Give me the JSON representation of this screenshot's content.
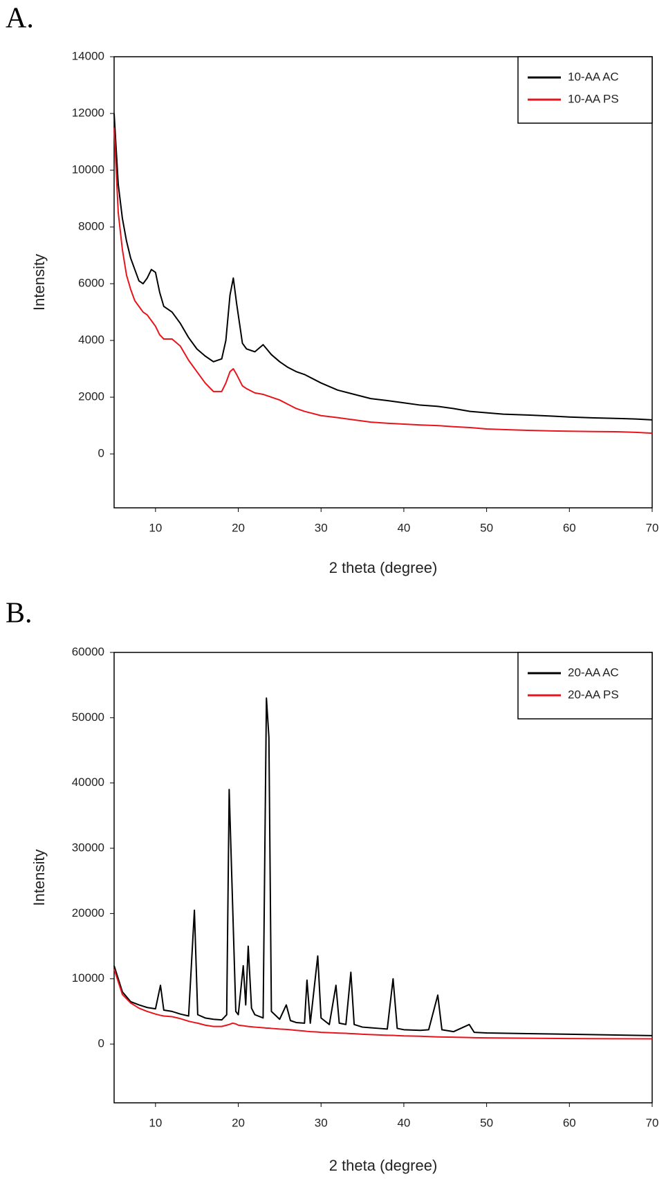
{
  "chart_data": [
    {
      "type": "line",
      "panel": "A.",
      "xlabel": "2 theta (degree)",
      "ylabel": "Intensity",
      "xlim": [
        5,
        70
      ],
      "xticks": [
        10,
        20,
        30,
        40,
        50,
        60,
        70
      ],
      "ylim": [
        -1900,
        14000
      ],
      "yticks": [
        0,
        2000,
        4000,
        6000,
        8000,
        10000,
        12000,
        14000
      ],
      "legend": "upper right",
      "x": [
        5,
        5.5,
        6,
        6.5,
        7,
        7.5,
        8,
        8.5,
        9,
        9.5,
        10,
        10.5,
        11,
        12,
        13,
        14,
        15,
        16,
        17,
        18,
        18.5,
        19,
        19.4,
        19.8,
        20.5,
        21,
        22,
        23,
        24,
        25,
        26,
        27,
        28,
        30,
        32,
        34,
        36,
        38,
        40,
        42,
        44,
        46,
        48,
        50,
        52,
        55,
        58,
        60,
        63,
        66,
        68,
        70
      ],
      "series": [
        {
          "name": "10-AA AC",
          "color": "#000000",
          "values": [
            12000,
            9500,
            8300,
            7500,
            6900,
            6500,
            6100,
            6000,
            6200,
            6500,
            6400,
            5700,
            5200,
            5000,
            4600,
            4100,
            3700,
            3450,
            3250,
            3350,
            4000,
            5600,
            6200,
            5300,
            3900,
            3700,
            3600,
            3850,
            3500,
            3250,
            3050,
            2900,
            2800,
            2500,
            2250,
            2100,
            1950,
            1880,
            1800,
            1720,
            1680,
            1600,
            1500,
            1450,
            1400,
            1370,
            1330,
            1300,
            1270,
            1250,
            1230,
            1200
          ]
        },
        {
          "name": "10-AA PS",
          "color": "#e8141b",
          "values": [
            11500,
            8500,
            7200,
            6300,
            5800,
            5400,
            5200,
            5000,
            4900,
            4700,
            4500,
            4200,
            4050,
            4050,
            3800,
            3300,
            2900,
            2500,
            2200,
            2200,
            2500,
            2900,
            3000,
            2800,
            2400,
            2300,
            2150,
            2100,
            2000,
            1900,
            1750,
            1600,
            1500,
            1350,
            1280,
            1200,
            1120,
            1080,
            1050,
            1020,
            1000,
            960,
            930,
            880,
            860,
            830,
            810,
            800,
            790,
            780,
            760,
            730
          ]
        }
      ]
    },
    {
      "type": "line",
      "panel": "B.",
      "xlabel": "2 theta (degree)",
      "ylabel": "Intensity",
      "xlim": [
        5,
        70
      ],
      "xticks": [
        10,
        20,
        30,
        40,
        50,
        60,
        70
      ],
      "ylim": [
        -9000,
        60000
      ],
      "yticks": [
        0,
        10000,
        20000,
        30000,
        40000,
        50000,
        60000
      ],
      "legend": "upper right",
      "x": [
        5,
        6,
        7,
        8,
        9,
        10,
        10.6,
        11,
        12,
        13,
        14,
        14.7,
        15.1,
        16,
        17,
        18,
        18.6,
        18.9,
        19.3,
        19.7,
        20,
        20.6,
        20.9,
        21.2,
        21.6,
        22,
        23,
        23.4,
        23.7,
        24,
        25,
        25.8,
        26.3,
        27,
        28,
        28.3,
        28.7,
        29.6,
        30,
        31,
        31.8,
        32.2,
        33,
        33.6,
        34,
        35,
        36,
        37,
        38,
        38.7,
        39.2,
        40,
        42,
        43,
        44.1,
        44.6,
        46,
        47.9,
        48.5,
        50,
        55,
        60,
        65,
        70
      ],
      "series": [
        {
          "name": "20-AA AC",
          "color": "#000000",
          "values": [
            12000,
            8000,
            6500,
            6000,
            5600,
            5400,
            9000,
            5200,
            5000,
            4600,
            4300,
            20500,
            4500,
            4000,
            3800,
            3700,
            4500,
            39000,
            22000,
            5000,
            4500,
            12000,
            6000,
            15000,
            5500,
            4500,
            4000,
            53000,
            47000,
            5000,
            3800,
            6000,
            3600,
            3300,
            3200,
            9800,
            3200,
            13500,
            4000,
            3000,
            9000,
            3200,
            3000,
            11000,
            3000,
            2600,
            2500,
            2400,
            2300,
            10000,
            2400,
            2200,
            2100,
            2200,
            7500,
            2200,
            1900,
            3000,
            1800,
            1700,
            1600,
            1500,
            1400,
            1300
          ]
        },
        {
          "name": "20-AA PS",
          "color": "#e8141b",
          "values": [
            11500,
            7600,
            6300,
            5500,
            5000,
            4600,
            4400,
            4300,
            4200,
            3900,
            3500,
            3300,
            3200,
            2900,
            2700,
            2700,
            2900,
            3000,
            3200,
            3100,
            2900,
            2800,
            2750,
            2700,
            2650,
            2600,
            2500,
            2450,
            2450,
            2400,
            2300,
            2250,
            2200,
            2100,
            2000,
            1950,
            1900,
            1850,
            1800,
            1750,
            1700,
            1680,
            1650,
            1600,
            1580,
            1500,
            1450,
            1400,
            1350,
            1330,
            1300,
            1250,
            1200,
            1150,
            1100,
            1080,
            1050,
            1000,
            980,
            950,
            900,
            850,
            820,
            800
          ]
        }
      ]
    }
  ]
}
